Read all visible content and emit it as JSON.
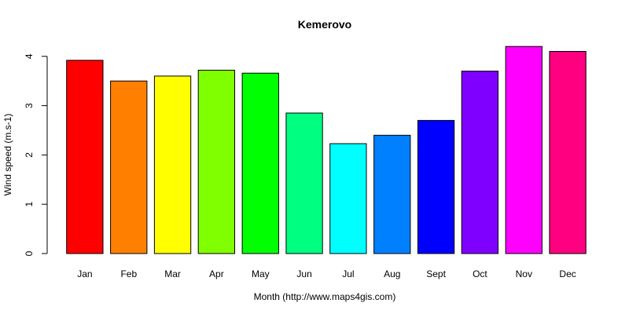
{
  "chart_data": {
    "type": "bar",
    "title": "Kemerovo",
    "xlabel": "Month (http://www.maps4gis.com)",
    "ylabel": "Wind speed (m.s-1)",
    "categories": [
      "Jan",
      "Feb",
      "Mar",
      "Apr",
      "May",
      "Jun",
      "Jul",
      "Aug",
      "Sept",
      "Oct",
      "Nov",
      "Dec"
    ],
    "values": [
      3.92,
      3.5,
      3.6,
      3.72,
      3.66,
      2.85,
      2.23,
      2.4,
      2.7,
      3.7,
      4.2,
      4.1
    ],
    "colors": [
      "#FF0000",
      "#FF8000",
      "#FFFF00",
      "#80FF00",
      "#00FF00",
      "#00FF80",
      "#00FFFF",
      "#0080FF",
      "#0000FF",
      "#8000FF",
      "#FF00FF",
      "#FF0080"
    ],
    "ylim": [
      0,
      4.2
    ],
    "yticks": [
      0,
      1,
      2,
      3,
      4
    ],
    "grid": false,
    "legend": "none"
  }
}
